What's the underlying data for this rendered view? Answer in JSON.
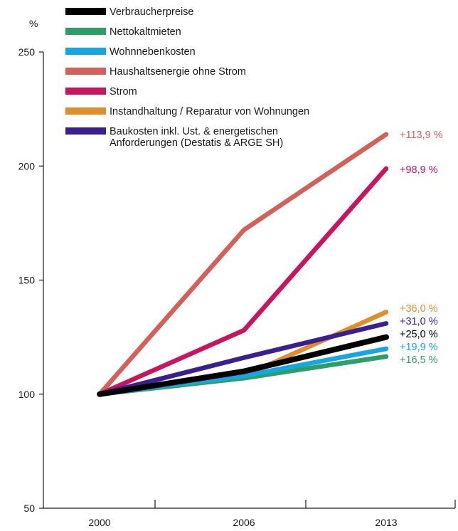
{
  "chart_data": {
    "type": "line",
    "ylabel": "%",
    "ylim": [
      50,
      250
    ],
    "yticks": [
      50,
      100,
      150,
      200,
      250
    ],
    "categories": [
      "2000",
      "2006",
      "2013"
    ],
    "x": [
      2000,
      2006,
      2013
    ],
    "grid": false,
    "legend_position": "top",
    "series": [
      {
        "name": "Verbraucherpreise",
        "color": "#000000",
        "values": [
          100,
          110,
          125
        ],
        "end_label": "+25,0 %"
      },
      {
        "name": "Nettokaltmieten",
        "color": "#2e9e68",
        "values": [
          100,
          107,
          116.5
        ],
        "end_label": "+16,5 %"
      },
      {
        "name": "Wohnnebenkosten",
        "color": "#16a6e0",
        "values": [
          100,
          108,
          119.9
        ],
        "end_label": "+19,9 %"
      },
      {
        "name": "Haushaltsenergie ohne Strom",
        "color": "#d4605a",
        "values": [
          100,
          172,
          213.9
        ],
        "end_label": "+113,9 %"
      },
      {
        "name": "Strom",
        "color": "#c8155e",
        "values": [
          100,
          128,
          198.9
        ],
        "end_label": "+98,9 %"
      },
      {
        "name": "Instandhaltung / Reparatur von Wohnungen",
        "color": "#de8f2c",
        "values": [
          100,
          108,
          136
        ],
        "end_label": "+36,0 %"
      },
      {
        "name": "Baukosten inkl. Ust. & energetischen Anforderungen (Destatis & ARGE SH)",
        "name_lines": [
          "Baukosten inkl. Ust. & energetischen",
          "Anforderungen (Destatis & ARGE SH)"
        ],
        "color": "#3a1f8f",
        "values": [
          100,
          116,
          131
        ],
        "end_label": "+31,0 %"
      }
    ]
  }
}
